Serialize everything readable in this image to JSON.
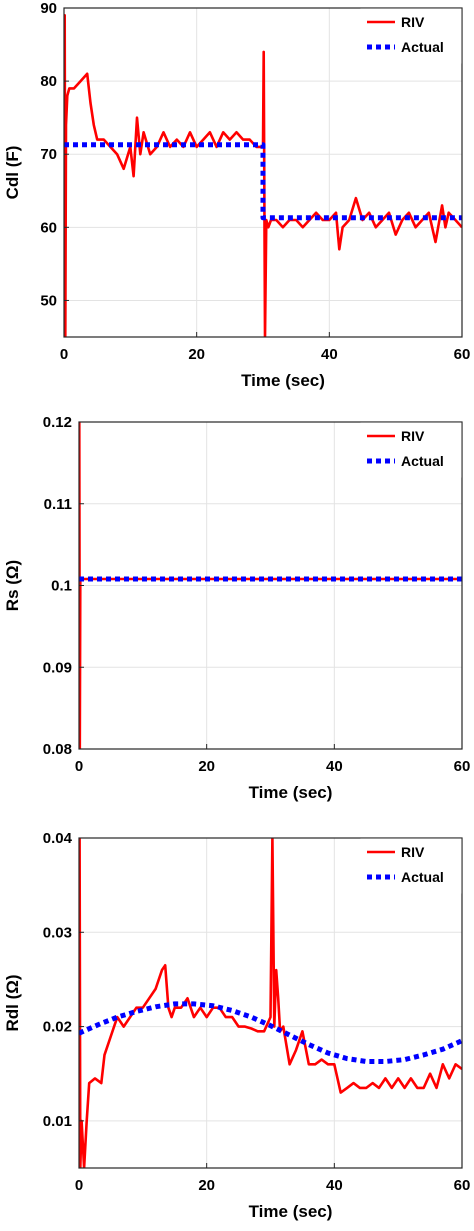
{
  "chart_data": [
    {
      "type": "line",
      "xlabel": "Time (sec)",
      "ylabel": "Cdl (F)",
      "xlim": [
        0,
        60
      ],
      "ylim": [
        45,
        90
      ],
      "xticks": [
        0,
        20,
        40,
        60
      ],
      "yticks": [
        50,
        60,
        70,
        80,
        90
      ],
      "grid": true,
      "legend_position": "top-right",
      "series": [
        {
          "name": "RIV",
          "color": "#ff0000",
          "style": "solid",
          "x": [
            0,
            0.1,
            0.2,
            0.3,
            0.5,
            0.8,
            1.5,
            2.5,
            3.5,
            4,
            4.5,
            5,
            6,
            7,
            8,
            9,
            10,
            10.5,
            11,
            11.5,
            12,
            13,
            14,
            15,
            16,
            17,
            18,
            19,
            20,
            21,
            22,
            23,
            24,
            25,
            26,
            27,
            28,
            29,
            29.8,
            30,
            30.1,
            30.3,
            30.5,
            30.8,
            31.2,
            32,
            33,
            34,
            35,
            36,
            37,
            38,
            39,
            40,
            41,
            41.5,
            42,
            43,
            44,
            45,
            46,
            47,
            48,
            49,
            50,
            51,
            52,
            53,
            54,
            55,
            56,
            57,
            57.5,
            58,
            59,
            60
          ],
          "y": [
            45,
            89,
            45,
            74,
            78,
            79,
            79,
            80,
            81,
            77,
            74,
            72,
            72,
            71,
            70,
            68,
            71,
            67,
            75,
            70,
            73,
            70,
            71,
            73,
            71,
            72,
            71,
            73,
            71,
            72,
            73,
            71,
            73,
            72,
            73,
            72,
            72,
            71,
            71,
            71,
            84,
            45,
            61,
            60,
            61,
            61,
            60,
            61,
            61,
            60,
            61,
            62,
            61,
            61,
            62,
            57,
            60,
            61,
            64,
            61,
            62,
            60,
            61,
            62,
            59,
            61,
            62,
            60,
            61,
            62,
            58,
            63,
            60,
            62,
            61,
            60
          ]
        },
        {
          "name": "Actual",
          "color": "#0000ff",
          "style": "dotted",
          "x": [
            0,
            30,
            30,
            60
          ],
          "y": [
            71.3,
            71.3,
            61.3,
            61.3
          ]
        }
      ]
    },
    {
      "type": "line",
      "xlabel": "Time (sec)",
      "ylabel": "Rs (Ω)",
      "xlim": [
        0,
        60
      ],
      "ylim": [
        0.08,
        0.12
      ],
      "xticks": [
        0,
        20,
        40,
        60
      ],
      "yticks": [
        0.08,
        0.09,
        0.1,
        0.11,
        0.12
      ],
      "grid": true,
      "legend_position": "top-right",
      "series": [
        {
          "name": "RIV",
          "color": "#ff0000",
          "style": "solid",
          "x": [
            0,
            0.05,
            0.12,
            0.2,
            60
          ],
          "y": [
            0.08,
            0.12,
            0.08,
            0.1008,
            0.1008
          ]
        },
        {
          "name": "Actual",
          "color": "#0000ff",
          "style": "dotted",
          "x": [
            0,
            60
          ],
          "y": [
            0.1008,
            0.1008
          ]
        }
      ]
    },
    {
      "type": "line",
      "xlabel": "Time (sec)",
      "ylabel": "Rdl (Ω)",
      "xlim": [
        0,
        60
      ],
      "ylim": [
        0.005,
        0.04
      ],
      "xticks": [
        0,
        20,
        40,
        60
      ],
      "yticks": [
        0.01,
        0.02,
        0.03,
        0.04
      ],
      "grid": true,
      "legend_position": "top-right",
      "series": [
        {
          "name": "RIV",
          "color": "#ff0000",
          "style": "solid",
          "x": [
            0,
            0.1,
            0.2,
            0.4,
            0.8,
            1.2,
            1.6,
            2.5,
            3.5,
            4,
            5,
            6,
            7,
            8,
            9,
            10,
            11,
            12,
            13,
            13.5,
            14,
            14.5,
            15,
            16,
            17,
            18,
            19,
            20,
            21,
            22,
            23,
            24,
            25,
            26,
            27,
            28,
            29,
            30,
            30.3,
            30.6,
            30.9,
            31.2,
            31.5,
            32,
            33,
            34,
            35,
            36,
            37,
            38,
            39,
            40,
            41,
            42,
            43,
            44,
            45,
            46,
            47,
            48,
            49,
            50,
            51,
            52,
            53,
            54,
            55,
            56,
            57,
            58,
            59,
            60
          ],
          "y": [
            0.005,
            0.04,
            0.005,
            0.01,
            0.005,
            0.01,
            0.014,
            0.0145,
            0.014,
            0.017,
            0.019,
            0.021,
            0.02,
            0.021,
            0.022,
            0.022,
            0.023,
            0.024,
            0.026,
            0.0265,
            0.022,
            0.021,
            0.022,
            0.022,
            0.023,
            0.021,
            0.022,
            0.021,
            0.022,
            0.022,
            0.021,
            0.021,
            0.02,
            0.02,
            0.0198,
            0.0195,
            0.0195,
            0.021,
            0.04,
            0.02,
            0.026,
            0.023,
            0.0195,
            0.02,
            0.016,
            0.0175,
            0.0195,
            0.016,
            0.016,
            0.0165,
            0.016,
            0.016,
            0.013,
            0.0135,
            0.014,
            0.0135,
            0.0135,
            0.014,
            0.0135,
            0.0145,
            0.0135,
            0.0145,
            0.0135,
            0.0145,
            0.0135,
            0.0135,
            0.015,
            0.0135,
            0.016,
            0.0145,
            0.016,
            0.0155
          ]
        },
        {
          "name": "Actual",
          "color": "#0000ff",
          "style": "dotted",
          "x": [
            0,
            3,
            6,
            9,
            12,
            15,
            18,
            21,
            24,
            27,
            30,
            33,
            36,
            39,
            42,
            45,
            48,
            51,
            54,
            57,
            60
          ],
          "y": [
            0.0193,
            0.0202,
            0.021,
            0.0216,
            0.0221,
            0.0224,
            0.0224,
            0.0222,
            0.0217,
            0.021,
            0.0201,
            0.0191,
            0.0181,
            0.0172,
            0.0166,
            0.0163,
            0.0163,
            0.0165,
            0.017,
            0.0176,
            0.0185
          ]
        }
      ]
    }
  ]
}
